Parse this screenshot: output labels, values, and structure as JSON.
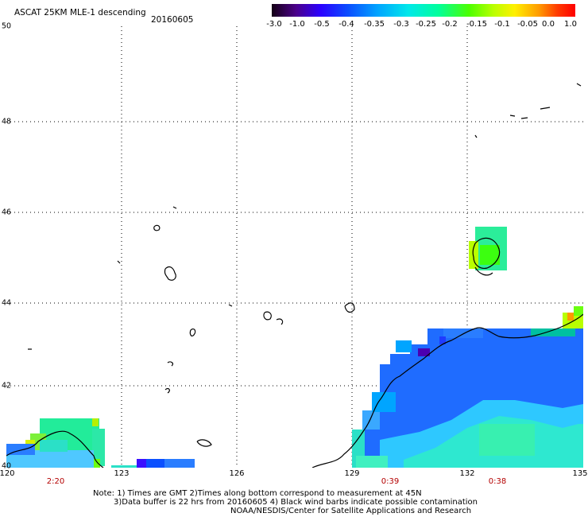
{
  "header": {
    "title": "ASCAT 25KM MLE-1 descending",
    "date": "20160605"
  },
  "colorbar": {
    "labels": [
      "-3.0",
      "-1.0",
      "-0.5",
      "-0.4",
      "-0.35",
      "-0.3",
      "-0.25",
      "-0.2",
      "-0.15",
      "-0.1",
      "-0.05",
      "0.0",
      "1.0"
    ]
  },
  "axes": {
    "lat_labels": [
      "50",
      "48",
      "46",
      "44",
      "42",
      "40"
    ],
    "lon_labels": [
      "120",
      "123",
      "126",
      "129",
      "132",
      "135"
    ],
    "times": [
      "2:20",
      "0:39",
      "0:38"
    ]
  },
  "notes": {
    "line1": "Note: 1) Times are GMT 2)Times along bottom correspond to measurement at 45N",
    "line2": "3)Data buffer is 22 hrs from 20160605 4) Black wind barbs indicate possible contamination",
    "line3": "NOAA/NESDIS/Center for Satellite Applications and Research"
  },
  "colors": {
    "grid": "#000000",
    "time_label": "#b40000"
  }
}
